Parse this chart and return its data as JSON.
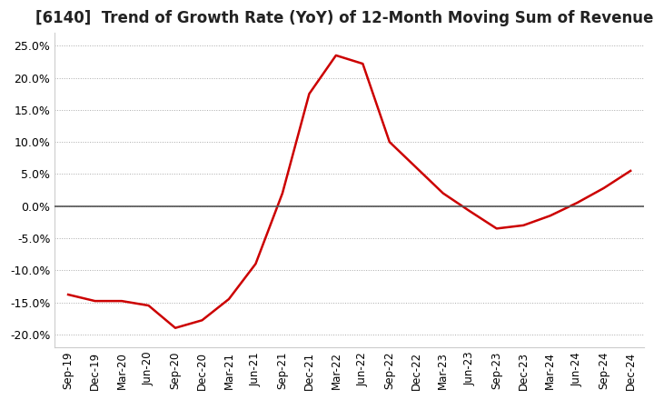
{
  "title": "[6140]  Trend of Growth Rate (YoY) of 12-Month Moving Sum of Revenues",
  "title_fontsize": 12,
  "background_color": "#ffffff",
  "plot_background_color": "#ffffff",
  "line_color": "#cc0000",
  "grid_color": "#aaaaaa",
  "zero_line_color": "#555555",
  "ylim": [
    -0.22,
    0.27
  ],
  "yticks": [
    -0.2,
    -0.15,
    -0.1,
    -0.05,
    0.0,
    0.05,
    0.1,
    0.15,
    0.2,
    0.25
  ],
  "dates": [
    "Sep-19",
    "Dec-19",
    "Mar-20",
    "Jun-20",
    "Sep-20",
    "Dec-20",
    "Mar-21",
    "Jun-21",
    "Sep-21",
    "Dec-21",
    "Mar-22",
    "Jun-22",
    "Sep-22",
    "Dec-22",
    "Mar-23",
    "Jun-23",
    "Sep-23",
    "Dec-23",
    "Mar-24",
    "Jun-24",
    "Sep-24",
    "Dec-24"
  ],
  "values": [
    -0.138,
    -0.148,
    -0.148,
    -0.155,
    -0.19,
    -0.178,
    -0.145,
    -0.09,
    0.02,
    0.175,
    0.235,
    0.222,
    0.1,
    0.06,
    0.02,
    -0.008,
    -0.035,
    -0.03,
    -0.015,
    0.005,
    0.028,
    0.055
  ]
}
